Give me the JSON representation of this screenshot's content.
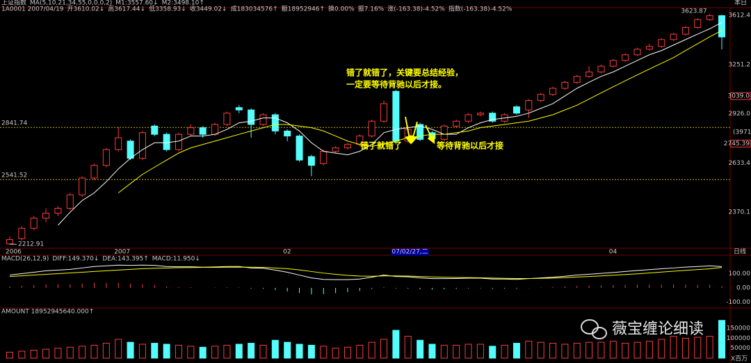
{
  "chart_data": {
    "type": "candlestick",
    "log": true,
    "header": [
      [
        {
          "text": "上证指数",
          "color": "#ffff00"
        },
        {
          "text": "MA(5,10,21,34,55,0,0,0,2)",
          "color": "#c8c8c8"
        },
        {
          "text": "M1:3557.60↓",
          "color": "#ffffff"
        },
        {
          "text": "M2:3498.10↑",
          "color": "#ffff00"
        }
      ],
      [
        {
          "text": "1A0001 2007/04/19",
          "color": "#c8c8c8"
        },
        {
          "text": "开3610.02↓",
          "color": "#ff5050"
        },
        {
          "text": "高3617.44↓",
          "color": "#ff5050"
        },
        {
          "text": "低3358.93↓",
          "color": "#ff5050"
        },
        {
          "text": "收3449.02↓",
          "color": "#ff5050"
        },
        {
          "text": "成183034576↑",
          "color": "#c8c8c8"
        },
        {
          "text": "额18952946↑",
          "color": "#c8c8c8"
        },
        {
          "text": "换0.00%",
          "color": "#c8c8c8"
        },
        {
          "text": "振7.16%",
          "color": "#c8c8c8"
        },
        {
          "text": "涨(-163.38)-4.52%",
          "color": "#54fcfc"
        },
        {
          "text": "指数(-163.38)-4.52%",
          "color": "#54fcfc"
        }
      ]
    ],
    "categories": [
      "2006",
      null,
      null,
      null,
      null,
      null,
      null,
      null,
      null,
      "2007",
      null,
      null,
      null,
      null,
      null,
      null,
      null,
      null,
      null,
      null,
      null,
      null,
      null,
      "02",
      null,
      null,
      null,
      null,
      null,
      null,
      null,
      null,
      "07/02/27,二",
      null,
      null,
      null,
      null,
      null,
      null,
      null,
      null,
      null,
      null,
      null,
      null,
      null,
      null,
      null,
      null,
      null,
      "04",
      null,
      null,
      null,
      null,
      null,
      null,
      null,
      null,
      null
    ],
    "period_label": "日线",
    "open": [
      2215,
      2240,
      2290,
      2340,
      2365,
      2390,
      2460,
      2550,
      2620,
      2710,
      2760,
      2660,
      2850,
      2800,
      2710,
      2800,
      2840,
      2800,
      2860,
      2965,
      2950,
      2860,
      2920,
      2820,
      2790,
      2670,
      2630,
      2700,
      2720,
      2740,
      2790,
      2880,
      3070,
      2760,
      2860,
      2810,
      2770,
      2850,
      2880,
      2920,
      2930,
      2880,
      2970,
      2950,
      3010,
      3050,
      3090,
      3130,
      3170,
      3200,
      3240,
      3280,
      3320,
      3360,
      3380,
      3430,
      3470,
      3520,
      3580,
      3610.02
    ],
    "high": [
      2250,
      2300,
      2350,
      2390,
      2400,
      2470,
      2560,
      2630,
      2720,
      2845,
      2770,
      2820,
      2860,
      2810,
      2810,
      2860,
      2850,
      2870,
      2940,
      2980,
      2960,
      2930,
      2930,
      2830,
      2800,
      2680,
      2710,
      2730,
      2750,
      2800,
      2890,
      3010,
      3080,
      2850,
      2870,
      2820,
      2860,
      2890,
      2930,
      2940,
      2940,
      2930,
      2980,
      3020,
      3060,
      3100,
      3140,
      3180,
      3240,
      3250,
      3290,
      3330,
      3370,
      3400,
      3440,
      3480,
      3530,
      3590,
      3623.87,
      3617.44
    ],
    "low": [
      2212.91,
      2230,
      2280,
      2320,
      2350,
      2380,
      2450,
      2540,
      2610,
      2700,
      2650,
      2650,
      2790,
      2700,
      2700,
      2790,
      2780,
      2790,
      2850,
      2930,
      2780,
      2850,
      2800,
      2760,
      2640,
      2560,
      2620,
      2690,
      2710,
      2730,
      2780,
      2870,
      2740,
      2750,
      2760,
      2760,
      2760,
      2840,
      2870,
      2910,
      2870,
      2870,
      2920,
      2900,
      3000,
      3040,
      3080,
      3120,
      3160,
      3190,
      3230,
      3270,
      3310,
      3350,
      3370,
      3420,
      3460,
      3510,
      3570,
      3358.93
    ],
    "close": [
      2235,
      2290,
      2340,
      2365,
      2390,
      2460,
      2550,
      2620,
      2710,
      2780,
      2660,
      2810,
      2800,
      2710,
      2800,
      2840,
      2800,
      2860,
      2930,
      2950,
      2860,
      2920,
      2820,
      2790,
      2650,
      2620,
      2700,
      2720,
      2740,
      2790,
      2880,
      2990,
      2760,
      2830,
      2770,
      2775,
      2850,
      2880,
      2920,
      2930,
      2880,
      2920,
      2930,
      3010,
      3050,
      3090,
      3130,
      3170,
      3200,
      3240,
      3280,
      3320,
      3360,
      3380,
      3430,
      3470,
      3520,
      3580,
      3610,
      3449.02
    ],
    "up_color": "#ff3c3c",
    "down_color": "#54fcfc",
    "ma": [
      {
        "color": "#ffffff",
        "values": [
          null,
          null,
          null,
          null,
          2305,
          2370,
          2430,
          2470,
          2530,
          2600,
          2660,
          2710,
          2750,
          2750,
          2760,
          2790,
          2790,
          2800,
          2830,
          2870,
          2880,
          2900,
          2900,
          2870,
          2820,
          2750,
          2700,
          2690,
          2680,
          2700,
          2740,
          2810,
          2830,
          2840,
          2850,
          2830,
          2800,
          2800,
          2840,
          2870,
          2890,
          2900,
          2910,
          2930,
          2960,
          2990,
          3040,
          3090,
          3130,
          3170,
          3200,
          3240,
          3280,
          3320,
          3350,
          3390,
          3430,
          3470,
          3510,
          3557.6
        ]
      },
      {
        "color": "#ffff00",
        "values": [
          null,
          null,
          null,
          null,
          null,
          null,
          null,
          null,
          null,
          2470,
          2520,
          2570,
          2610,
          2650,
          2690,
          2720,
          2740,
          2760,
          2780,
          2800,
          2820,
          2840,
          2860,
          2860,
          2850,
          2840,
          2820,
          2790,
          2760,
          2740,
          2730,
          2740,
          2760,
          2780,
          2790,
          2800,
          2800,
          2810,
          2820,
          2840,
          2850,
          2860,
          2870,
          2880,
          2900,
          2920,
          2950,
          2980,
          3020,
          3060,
          3100,
          3140,
          3180,
          3220,
          3260,
          3300,
          3350,
          3400,
          3450,
          3498.1
        ]
      }
    ],
    "ylim": [
      2194,
      3667
    ],
    "yticks": [
      2370.1,
      2633.4,
      {
        "value": 2926,
        "label": "2926.0"
      },
      3251.2,
      3612.4
    ],
    "hlines": [
      2841.74,
      2541.52
    ],
    "hline_color": "#c8b400",
    "low_label": 2212.91,
    "high_label": 3623.87,
    "markers": [
      {
        "value": 3039,
        "label": "3039.0"
      },
      {
        "value": 2745.39,
        "label": "2745.39"
      }
    ],
    "count_label": "(3971)",
    "corner_label": "本日",
    "annotations": [
      "错了就错了，关键要总结经验，",
      "一定要等待背驰以后才接。",
      "错了就错了",
      "等待背驰以后才接"
    ],
    "watermark": "薇宝缠论细读",
    "macd": {
      "header": [
        {
          "text": "MACD(26,12,9)",
          "color": "#c8c8c8"
        },
        {
          "text": "DIFF:149.370↓",
          "color": "#ffffff"
        },
        {
          "text": "DEA:143.395↑",
          "color": "#ffff00"
        },
        {
          "text": "MACD:11.950↓",
          "color": "#ff50ff"
        }
      ],
      "ylim": [
        -127,
        205
      ],
      "yticks": [
        {
          "value": -100,
          "label": "-100.00"
        },
        {
          "value": 0,
          "label": "0.00"
        },
        {
          "value": 100,
          "label": "100.00"
        }
      ],
      "diff": {
        "color": "#ffffff",
        "values": [
          90,
          100,
          110,
          120,
          125,
          130,
          140,
          150,
          155,
          160,
          158,
          160,
          158,
          150,
          148,
          148,
          145,
          147,
          150,
          150,
          140,
          138,
          125,
          110,
          90,
          70,
          60,
          58,
          58,
          62,
          75,
          90,
          80,
          78,
          70,
          65,
          65,
          66,
          68,
          68,
          62,
          62,
          60,
          65,
          70,
          75,
          82,
          90,
          96,
          102,
          108,
          115,
          122,
          128,
          134,
          140,
          146,
          150,
          155,
          149.37
        ]
      },
      "dea": {
        "color": "#ffff00",
        "values": [
          80,
          85,
          90,
          95,
          100,
          105,
          110,
          115,
          120,
          125,
          130,
          135,
          138,
          140,
          142,
          143,
          144,
          144,
          145,
          146,
          145,
          144,
          140,
          135,
          126,
          115,
          104,
          95,
          88,
          83,
          82,
          84,
          84,
          83,
          80,
          77,
          75,
          73,
          72,
          71,
          69,
          67,
          66,
          66,
          67,
          69,
          72,
          76,
          80,
          84,
          89,
          94,
          99,
          105,
          111,
          117,
          123,
          129,
          134,
          143.395
        ]
      },
      "hist": [
        10,
        15,
        20,
        25,
        25,
        25,
        30,
        35,
        35,
        35,
        28,
        25,
        20,
        10,
        6,
        5,
        1,
        3,
        5,
        4,
        -5,
        -6,
        -15,
        -25,
        -36,
        -45,
        -44,
        -37,
        -30,
        -21,
        -7,
        6,
        -4,
        -5,
        -10,
        -12,
        -10,
        -7,
        -4,
        -3,
        -7,
        -5,
        -6,
        -1,
        3,
        6,
        10,
        14,
        16,
        18,
        19,
        21,
        23,
        23,
        23,
        23,
        23,
        21,
        21,
        11.95
      ]
    },
    "volume": {
      "header": [
        {
          "text": "AMOUNT 18952945640.000↑",
          "color": "#c8c8c8"
        }
      ],
      "ylim": [
        0,
        210000
      ],
      "yticks": [
        50000,
        100000,
        150000
      ],
      "unit": "X百万",
      "values": [
        30000,
        35000,
        40000,
        45000,
        50000,
        55000,
        60000,
        65000,
        75000,
        95000,
        80000,
        70000,
        75000,
        70000,
        65000,
        60000,
        55000,
        60000,
        65000,
        70000,
        75000,
        65000,
        90000,
        80000,
        70000,
        65000,
        60000,
        50000,
        55000,
        65000,
        80000,
        95000,
        140000,
        110000,
        90000,
        70000,
        65000,
        65000,
        70000,
        70000,
        60000,
        65000,
        75000,
        85000,
        80000,
        75000,
        70000,
        75000,
        80000,
        80000,
        85000,
        75000,
        80000,
        85000,
        95000,
        110000,
        100000,
        105000,
        110000,
        190000
      ]
    }
  }
}
